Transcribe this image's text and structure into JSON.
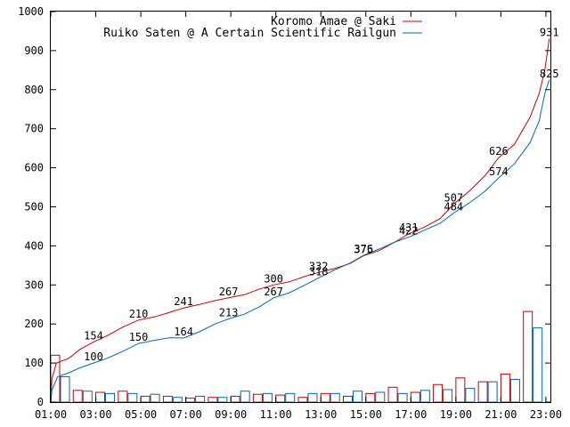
{
  "chart_data": {
    "type": "line",
    "title": "",
    "xlabel": "",
    "ylabel": "",
    "ylim": [
      0,
      1000
    ],
    "xlim": [
      1,
      23.2
    ],
    "y_ticks": [
      0,
      100,
      200,
      300,
      400,
      500,
      600,
      700,
      800,
      900,
      1000
    ],
    "x_ticks": [
      {
        "value": 1,
        "label": "01:00"
      },
      {
        "value": 3,
        "label": "03:00"
      },
      {
        "value": 5,
        "label": "05:00"
      },
      {
        "value": 7,
        "label": "07:00"
      },
      {
        "value": 9,
        "label": "09:00"
      },
      {
        "value": 11,
        "label": "11:00"
      },
      {
        "value": 13,
        "label": "13:00"
      },
      {
        "value": 15,
        "label": "15:00"
      },
      {
        "value": 17,
        "label": "17:00"
      },
      {
        "value": 19,
        "label": "19:00"
      },
      {
        "value": 21,
        "label": "21:00"
      },
      {
        "value": 23,
        "label": "23:00"
      }
    ],
    "legend_position": "top-right",
    "grid": false,
    "series": [
      {
        "name": "Koromo Amae @ Saki",
        "color": "#cc0000",
        "cumulative": [
          [
            1.0,
            0
          ],
          [
            1.05,
            60
          ],
          [
            1.25,
            100
          ],
          [
            1.8,
            112
          ],
          [
            2.3,
            135
          ],
          [
            2.9,
            154
          ],
          [
            3.5,
            170
          ],
          [
            4.2,
            192
          ],
          [
            4.9,
            210
          ],
          [
            5.6,
            218
          ],
          [
            6.3,
            230
          ],
          [
            6.9,
            241
          ],
          [
            7.6,
            250
          ],
          [
            8.3,
            260
          ],
          [
            8.9,
            267
          ],
          [
            9.6,
            275
          ],
          [
            10.3,
            290
          ],
          [
            10.9,
            300
          ],
          [
            11.6,
            308
          ],
          [
            12.3,
            322
          ],
          [
            12.9,
            332
          ],
          [
            13.6,
            342
          ],
          [
            14.3,
            355
          ],
          [
            14.9,
            375
          ],
          [
            15.6,
            388
          ],
          [
            16.3,
            410
          ],
          [
            16.9,
            431
          ],
          [
            17.6,
            448
          ],
          [
            18.3,
            470
          ],
          [
            18.9,
            507
          ],
          [
            19.6,
            540
          ],
          [
            20.3,
            580
          ],
          [
            20.9,
            626
          ],
          [
            21.6,
            660
          ],
          [
            22.3,
            730
          ],
          [
            22.7,
            790
          ],
          [
            22.95,
            850
          ],
          [
            23.15,
            931
          ]
        ],
        "labels": [
          {
            "x": 2.9,
            "text": "154"
          },
          {
            "x": 4.9,
            "text": "210"
          },
          {
            "x": 6.9,
            "text": "241"
          },
          {
            "x": 8.9,
            "text": "267"
          },
          {
            "x": 10.9,
            "text": "300"
          },
          {
            "x": 12.9,
            "text": "332"
          },
          {
            "x": 14.9,
            "text": "375"
          },
          {
            "x": 16.9,
            "text": "431"
          },
          {
            "x": 18.9,
            "text": "507"
          },
          {
            "x": 20.9,
            "text": "626"
          },
          {
            "x": 23.15,
            "text": "931"
          }
        ],
        "hourly": [
          {
            "x": 1,
            "value": 120
          },
          {
            "x": 2,
            "value": 30
          },
          {
            "x": 3,
            "value": 25
          },
          {
            "x": 4,
            "value": 28
          },
          {
            "x": 5,
            "value": 15
          },
          {
            "x": 6,
            "value": 15
          },
          {
            "x": 7,
            "value": 10
          },
          {
            "x": 8,
            "value": 12
          },
          {
            "x": 9,
            "value": 15
          },
          {
            "x": 10,
            "value": 20
          },
          {
            "x": 11,
            "value": 18
          },
          {
            "x": 12,
            "value": 12
          },
          {
            "x": 13,
            "value": 22
          },
          {
            "x": 14,
            "value": 15
          },
          {
            "x": 15,
            "value": 22
          },
          {
            "x": 16,
            "value": 38
          },
          {
            "x": 17,
            "value": 25
          },
          {
            "x": 18,
            "value": 45
          },
          {
            "x": 19,
            "value": 62
          },
          {
            "x": 20,
            "value": 52
          },
          {
            "x": 21,
            "value": 72
          },
          {
            "x": 22,
            "value": 232
          }
        ]
      },
      {
        "name": "Ruiko Saten @ A Certain Scientific Railgun",
        "color": "#0066bb",
        "cumulative": [
          [
            1.0,
            0
          ],
          [
            1.05,
            30
          ],
          [
            1.3,
            65
          ],
          [
            1.8,
            75
          ],
          [
            2.3,
            88
          ],
          [
            2.9,
            100
          ],
          [
            3.5,
            112
          ],
          [
            4.2,
            130
          ],
          [
            4.9,
            150
          ],
          [
            5.6,
            158
          ],
          [
            6.3,
            165
          ],
          [
            6.9,
            164
          ],
          [
            7.6,
            180
          ],
          [
            8.3,
            200
          ],
          [
            8.9,
            213
          ],
          [
            9.6,
            225
          ],
          [
            10.3,
            245
          ],
          [
            10.9,
            267
          ],
          [
            11.6,
            280
          ],
          [
            12.3,
            300
          ],
          [
            12.9,
            318
          ],
          [
            13.6,
            338
          ],
          [
            14.3,
            356
          ],
          [
            14.9,
            376
          ],
          [
            15.6,
            392
          ],
          [
            16.3,
            410
          ],
          [
            16.9,
            422
          ],
          [
            17.6,
            440
          ],
          [
            18.3,
            458
          ],
          [
            18.9,
            484
          ],
          [
            19.6,
            510
          ],
          [
            20.3,
            540
          ],
          [
            20.9,
            574
          ],
          [
            21.6,
            610
          ],
          [
            22.3,
            665
          ],
          [
            22.7,
            720
          ],
          [
            22.95,
            790
          ],
          [
            23.15,
            825
          ]
        ],
        "labels": [
          {
            "x": 2.9,
            "text": "100"
          },
          {
            "x": 4.9,
            "text": "150"
          },
          {
            "x": 6.9,
            "text": "164"
          },
          {
            "x": 8.9,
            "text": "213"
          },
          {
            "x": 10.9,
            "text": "267"
          },
          {
            "x": 12.9,
            "text": "318"
          },
          {
            "x": 14.9,
            "text": "376"
          },
          {
            "x": 16.9,
            "text": "422"
          },
          {
            "x": 18.9,
            "text": "484"
          },
          {
            "x": 20.9,
            "text": "574"
          },
          {
            "x": 23.15,
            "text": "825"
          }
        ],
        "hourly": [
          {
            "x": 1,
            "value": 65
          },
          {
            "x": 2,
            "value": 28
          },
          {
            "x": 3,
            "value": 22
          },
          {
            "x": 4,
            "value": 22
          },
          {
            "x": 5,
            "value": 20
          },
          {
            "x": 6,
            "value": 12
          },
          {
            "x": 7,
            "value": 15
          },
          {
            "x": 8,
            "value": 12
          },
          {
            "x": 9,
            "value": 28
          },
          {
            "x": 10,
            "value": 22
          },
          {
            "x": 11,
            "value": 22
          },
          {
            "x": 12,
            "value": 22
          },
          {
            "x": 13,
            "value": 22
          },
          {
            "x": 14,
            "value": 28
          },
          {
            "x": 15,
            "value": 25
          },
          {
            "x": 16,
            "value": 22
          },
          {
            "x": 17,
            "value": 30
          },
          {
            "x": 18,
            "value": 32
          },
          {
            "x": 19,
            "value": 35
          },
          {
            "x": 20,
            "value": 52
          },
          {
            "x": 21,
            "value": 58
          },
          {
            "x": 22,
            "value": 190
          }
        ]
      }
    ]
  }
}
